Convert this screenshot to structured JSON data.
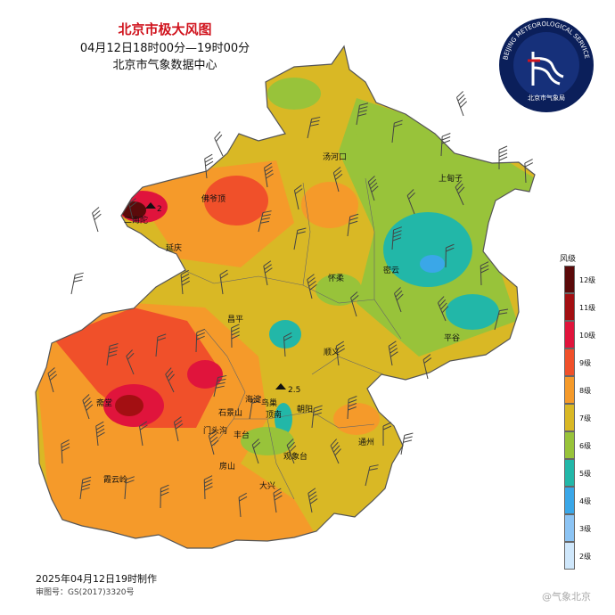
{
  "header": {
    "title": "北京市极大风图",
    "time_range": "04月12日18时00分—19时00分",
    "agency": "北京市气象数据中心"
  },
  "logo": {
    "outer_text": "BEIJING METEOROLOGICAL SERVICE",
    "inner_text": "北京市气象局",
    "colors": {
      "disc": "#0b1f5a",
      "ring": "#1d3c8f",
      "mark": "#ffffff",
      "accent": "#d0141e"
    }
  },
  "map": {
    "districts": [
      {
        "name": "二海陀"
      },
      {
        "name": "佛爷顶"
      },
      {
        "name": "延庆"
      },
      {
        "name": "汤河口"
      },
      {
        "name": "上甸子"
      },
      {
        "name": "密云"
      },
      {
        "name": "怀柔"
      },
      {
        "name": "平谷"
      },
      {
        "name": "昌平"
      },
      {
        "name": "顺义"
      },
      {
        "name": "斋堂"
      },
      {
        "name": "海淀"
      },
      {
        "name": "石景山"
      },
      {
        "name": "鸟巢"
      },
      {
        "name": "顶南"
      },
      {
        "name": "朝阳"
      },
      {
        "name": "门头沟"
      },
      {
        "name": "丰台"
      },
      {
        "name": "通州"
      },
      {
        "name": "霞云岭"
      },
      {
        "name": "房山"
      },
      {
        "name": "观象台"
      },
      {
        "name": "大兴"
      }
    ],
    "markers": [
      {
        "label": "2",
        "color": "#111111"
      },
      {
        "label": "2.5",
        "color": "#111111"
      }
    ],
    "colors": {
      "outline": "#555555",
      "barb": "#444444"
    }
  },
  "legend": {
    "title": "风级",
    "items": [
      {
        "label": "12级",
        "color": "#5b0a0a"
      },
      {
        "label": "11级",
        "color": "#a30f12"
      },
      {
        "label": "10级",
        "color": "#e0143c"
      },
      {
        "label": "9级",
        "color": "#f0502a"
      },
      {
        "label": "8级",
        "color": "#f59a2a"
      },
      {
        "label": "7级",
        "color": "#d9b825"
      },
      {
        "label": "6级",
        "color": "#98c33a"
      },
      {
        "label": "5级",
        "color": "#22b7a8"
      },
      {
        "label": "4级",
        "color": "#3aa7e8"
      },
      {
        "label": "3级",
        "color": "#8cc4f4"
      },
      {
        "label": "2级",
        "color": "#cfe7fb"
      }
    ]
  },
  "footer": {
    "made_at": "2025年04月12日19时制作",
    "approval": "审图号：GS(2017)3320号",
    "watermark": "@气象北京"
  }
}
